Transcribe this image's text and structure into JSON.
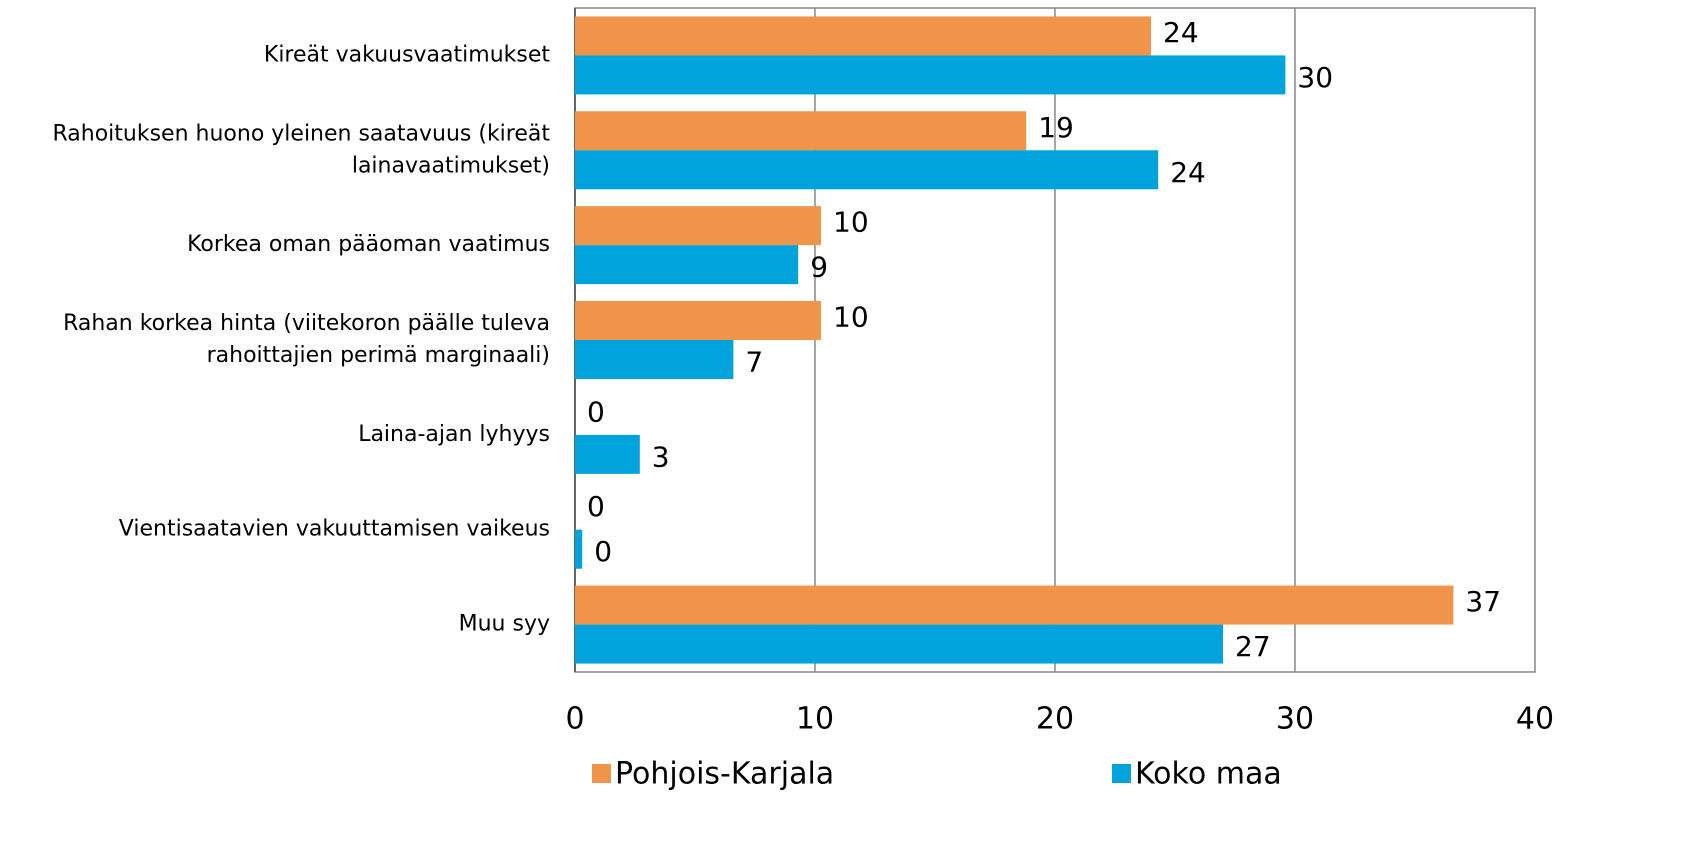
{
  "chart_data": {
    "type": "bar",
    "orientation": "horizontal",
    "categories": [
      [
        "Kireät vakuusvaatimukset"
      ],
      [
        "Rahoituksen huono yleinen saatavuus (kireät",
        "lainavaatimukset)"
      ],
      [
        "Korkea oman pääoman vaatimus"
      ],
      [
        "Rahan korkea hinta (viitekoron päälle tuleva",
        "rahoittajien perimä marginaali)"
      ],
      [
        "Laina-ajan lyhyys"
      ],
      [
        "Vientisaatavien vakuuttamisen vaikeus"
      ],
      [
        "Muu syy"
      ]
    ],
    "series": [
      {
        "name": "Pohjois-Karjala",
        "color": "#f0944a",
        "values": [
          24.0,
          18.8,
          10.25,
          10.25,
          0,
          0,
          36.6
        ],
        "value_labels": [
          "24",
          "19",
          "10",
          "10",
          "0",
          "0",
          "37"
        ]
      },
      {
        "name": "Koko maa",
        "color": "#00a3dc",
        "values": [
          29.6,
          24.3,
          9.3,
          6.6,
          2.7,
          0.3,
          27.0
        ],
        "value_labels": [
          "30",
          "24",
          "9",
          "7",
          "3",
          "0",
          "27"
        ]
      }
    ],
    "xlim": [
      0,
      40
    ],
    "xticks": [
      0,
      10,
      20,
      30,
      40
    ],
    "grid": true
  }
}
